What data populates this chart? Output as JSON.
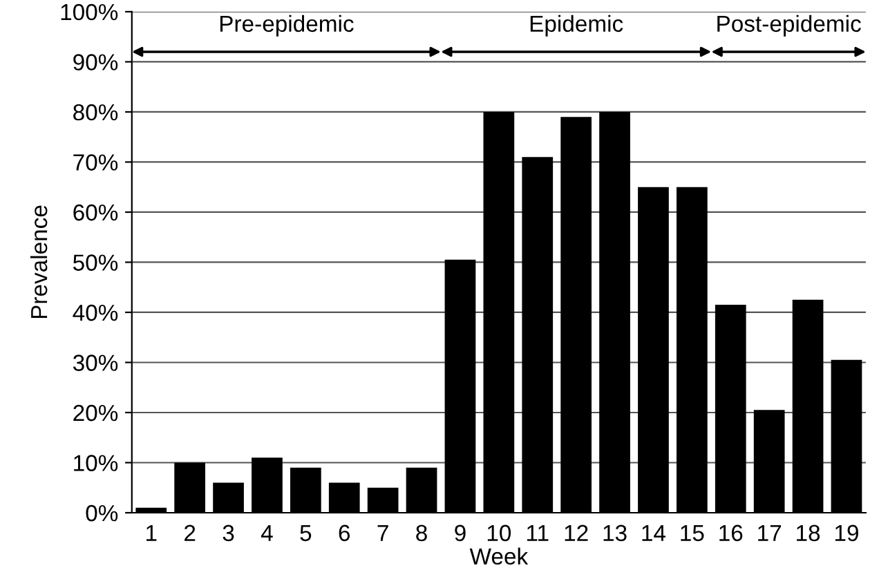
{
  "chart_data": {
    "type": "bar",
    "xlabel": "Week",
    "ylabel": "Prevalence",
    "categories": [
      "1",
      "2",
      "3",
      "4",
      "5",
      "6",
      "7",
      "8",
      "9",
      "10",
      "11",
      "12",
      "13",
      "14",
      "15",
      "16",
      "17",
      "18",
      "19"
    ],
    "values": [
      1,
      10,
      6,
      11,
      9,
      6,
      5,
      9,
      50.5,
      80,
      71,
      79,
      80,
      65,
      65,
      41.5,
      20.5,
      42.5,
      30.5
    ],
    "color": "#000000",
    "ylim": [
      0,
      100
    ],
    "yticks": [
      {
        "value": 0,
        "label": "0%"
      },
      {
        "value": 10,
        "label": "10%"
      },
      {
        "value": 20,
        "label": "20%"
      },
      {
        "value": 30,
        "label": "30%"
      },
      {
        "value": 40,
        "label": "40%"
      },
      {
        "value": 50,
        "label": "50%"
      },
      {
        "value": 60,
        "label": "60%"
      },
      {
        "value": 70,
        "label": "70%"
      },
      {
        "value": 80,
        "label": "80%"
      },
      {
        "value": 90,
        "label": "90%"
      },
      {
        "value": 100,
        "label": "100%"
      }
    ],
    "annotations": [
      "Pre-epidemic",
      "Epidemic",
      "Post-epidemic"
    ],
    "grid": "y"
  }
}
